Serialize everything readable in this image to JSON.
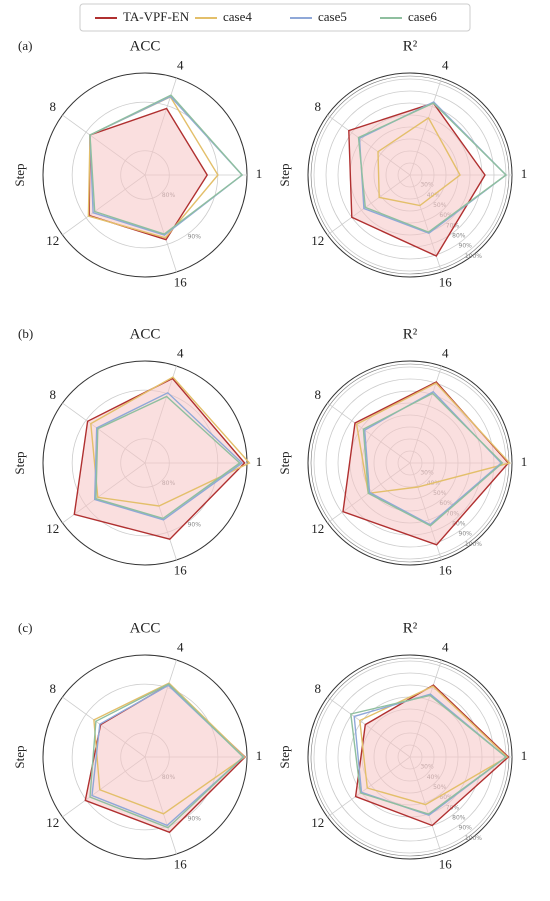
{
  "chart_data": [
    {
      "type": "radar",
      "panel": "(a)",
      "title": "ACC",
      "r_label": "Step",
      "categories": [
        "1",
        "4",
        "8",
        "12",
        "16"
      ],
      "rlim": [
        75,
        96
      ],
      "rticks": [
        {
          "value": 80,
          "label": "80%"
        },
        {
          "value": 90,
          "label": "90%"
        }
      ],
      "series": [
        {
          "name": "TA-VPF-EN",
          "color": "#b03030",
          "fill": "#f6c4c4",
          "values": [
            87.8,
            89.4,
            89,
            89.2,
            89
          ]
        },
        {
          "name": "case4",
          "color": "#e3bf6a",
          "values": [
            90,
            91.9,
            89,
            89.4,
            88.6
          ]
        },
        {
          "name": "case5",
          "color": "#8fa8d8",
          "values": [
            95,
            92,
            89,
            88.2,
            88
          ]
        },
        {
          "name": "case6",
          "color": "#8fbf9f",
          "values": [
            95,
            92.3,
            89,
            87.8,
            87.8
          ]
        }
      ]
    },
    {
      "type": "radar",
      "title": "R²",
      "r_label": "Step",
      "categories": [
        "1",
        "4",
        "8",
        "12",
        "16"
      ],
      "rlim": [
        20,
        105
      ],
      "rticks": [
        {
          "value": 30,
          "label": "30%"
        },
        {
          "value": 40,
          "label": "40%"
        },
        {
          "value": 50,
          "label": "50%"
        },
        {
          "value": 60,
          "label": "60%"
        },
        {
          "value": 70,
          "label": "70%"
        },
        {
          "value": 80,
          "label": "80%"
        },
        {
          "value": 90,
          "label": "90%"
        },
        {
          "value": 100,
          "label": "100%"
        }
      ],
      "series": [
        {
          "name": "TA-VPF-EN",
          "color": "#b03030",
          "fill": "#f6c4c4",
          "values": [
            82.5,
            83,
            83,
            80,
            91
          ]
        },
        {
          "name": "case4",
          "color": "#e3bf6a",
          "values": [
            61.7,
            70,
            53,
            51.7,
            46.7
          ]
        },
        {
          "name": "case5",
          "color": "#8fa8d8",
          "values": [
            100,
            84,
            72,
            67.5,
            71
          ]
        },
        {
          "name": "case6",
          "color": "#8fbf9f",
          "values": [
            100,
            83,
            73,
            66,
            70
          ]
        }
      ]
    },
    {
      "type": "radar",
      "panel": "(b)",
      "title": "ACC",
      "r_label": "Step",
      "categories": [
        "1",
        "4",
        "8",
        "12",
        "16"
      ],
      "rlim": [
        75,
        96
      ],
      "rticks": [
        {
          "value": 80,
          "label": "80%"
        },
        {
          "value": 90,
          "label": "90%"
        }
      ],
      "series": [
        {
          "name": "TA-VPF-EN",
          "color": "#b03030",
          "fill": "#f6c4c4",
          "values": [
            95.5,
            93.3,
            89.6,
            93,
            91.5
          ]
        },
        {
          "name": "case4",
          "color": "#e3bf6a",
          "values": [
            96.5,
            93.6,
            88.8,
            87,
            84.3
          ]
        },
        {
          "name": "case5",
          "color": "#8fa8d8",
          "values": [
            95,
            90.2,
            87.3,
            87.8,
            87.3
          ]
        },
        {
          "name": "case6",
          "color": "#8fbf9f",
          "values": [
            94.5,
            89.4,
            87,
            87.5,
            87
          ]
        }
      ]
    },
    {
      "type": "radar",
      "title": "R²",
      "r_label": "Step",
      "categories": [
        "1",
        "4",
        "8",
        "12",
        "16"
      ],
      "rlim": [
        20,
        105
      ],
      "rticks": [
        {
          "value": 30,
          "label": "30%"
        },
        {
          "value": 40,
          "label": "40%"
        },
        {
          "value": 50,
          "label": "50%"
        },
        {
          "value": 60,
          "label": "60%"
        },
        {
          "value": 70,
          "label": "70%"
        },
        {
          "value": 80,
          "label": "80%"
        },
        {
          "value": 90,
          "label": "90%"
        },
        {
          "value": 100,
          "label": "100%"
        }
      ],
      "series": [
        {
          "name": "TA-VPF-EN",
          "color": "#b03030",
          "fill": "#f6c4c4",
          "values": [
            102,
            91,
            76.7,
            89,
            91.7
          ]
        },
        {
          "name": "case4",
          "color": "#e3bf6a",
          "values": [
            103,
            90,
            75,
            63,
            41
          ]
        },
        {
          "name": "case5",
          "color": "#8fa8d8",
          "values": [
            96,
            82.5,
            66.7,
            61.7,
            74
          ]
        },
        {
          "name": "case6",
          "color": "#8fbf9f",
          "values": [
            97,
            81,
            68,
            63,
            75
          ]
        }
      ]
    },
    {
      "type": "radar",
      "panel": "(c)",
      "title": "ACC",
      "r_label": "Step",
      "categories": [
        "1",
        "4",
        "8",
        "12",
        "16"
      ],
      "rlim": [
        75,
        96
      ],
      "rticks": [
        {
          "value": 80,
          "label": "80%"
        },
        {
          "value": 90,
          "label": "90%"
        }
      ],
      "series": [
        {
          "name": "TA-VPF-EN",
          "color": "#b03030",
          "fill": "#f6c4c4",
          "values": [
            95.6,
            90.6,
            86.3,
            90.2,
            91.3
          ]
        },
        {
          "name": "case4",
          "color": "#e3bf6a",
          "values": [
            95.5,
            91,
            88,
            86.5,
            87.3
          ]
        },
        {
          "name": "case5",
          "color": "#8fa8d8",
          "values": [
            95.3,
            90.5,
            86.5,
            88.5,
            89.8
          ]
        },
        {
          "name": "case6",
          "color": "#8fbf9f",
          "values": [
            95.2,
            90.8,
            87.5,
            89,
            90.3
          ]
        }
      ]
    },
    {
      "type": "radar",
      "title": "R²",
      "r_label": "Step",
      "categories": [
        "1",
        "4",
        "8",
        "12",
        "16"
      ],
      "rlim": [
        20,
        105
      ],
      "rticks": [
        {
          "value": 30,
          "label": "30%"
        },
        {
          "value": 40,
          "label": "40%"
        },
        {
          "value": 50,
          "label": "50%"
        },
        {
          "value": 60,
          "label": "60%"
        },
        {
          "value": 70,
          "label": "70%"
        },
        {
          "value": 80,
          "label": "80%"
        },
        {
          "value": 90,
          "label": "90%"
        },
        {
          "value": 100,
          "label": "100%"
        }
      ],
      "series": [
        {
          "name": "TA-VPF-EN",
          "color": "#b03030",
          "fill": "#f6c4c4",
          "values": [
            102,
            83,
            66,
            76,
            80
          ]
        },
        {
          "name": "case4",
          "color": "#e3bf6a",
          "values": [
            101,
            82,
            71.7,
            64,
            61.7
          ]
        },
        {
          "name": "case5",
          "color": "#8fa8d8",
          "values": [
            100,
            75,
            77.5,
            70,
            71
          ]
        },
        {
          "name": "case6",
          "color": "#8fbf9f",
          "values": [
            100,
            74,
            81,
            71,
            70
          ]
        }
      ]
    }
  ]
}
